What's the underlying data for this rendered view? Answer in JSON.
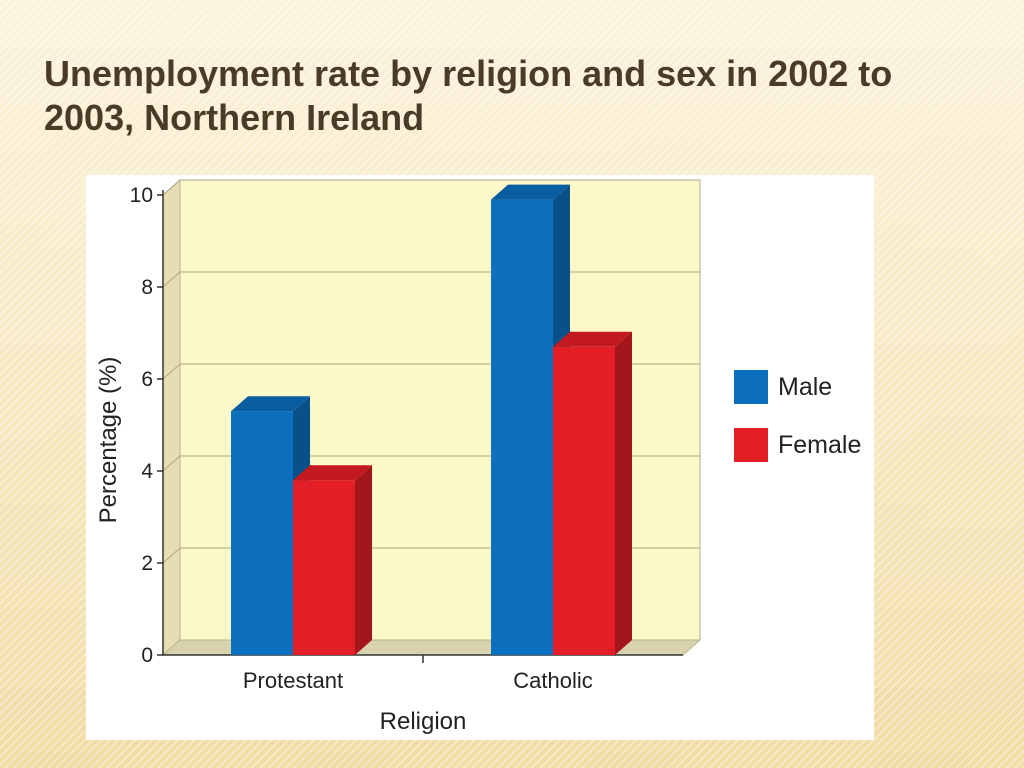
{
  "slide": {
    "title": "Unemployment rate by religion and sex in 2002 to 2003, Northern Ireland"
  },
  "chart_data": {
    "type": "bar",
    "title": "",
    "xlabel": "Religion",
    "ylabel": "Percentage (%)",
    "categories": [
      "Protestant",
      "Catholic"
    ],
    "series": [
      {
        "name": "Male",
        "values": [
          5.3,
          9.9
        ],
        "color": "#0b6fbd"
      },
      {
        "name": "Female",
        "values": [
          3.8,
          6.7
        ],
        "color": "#e41e26"
      }
    ],
    "ylim": [
      0,
      10
    ],
    "yticks": [
      0,
      2,
      4,
      6,
      8,
      10
    ],
    "grid": true,
    "legend_position": "right",
    "background": "#fcf8c8"
  }
}
